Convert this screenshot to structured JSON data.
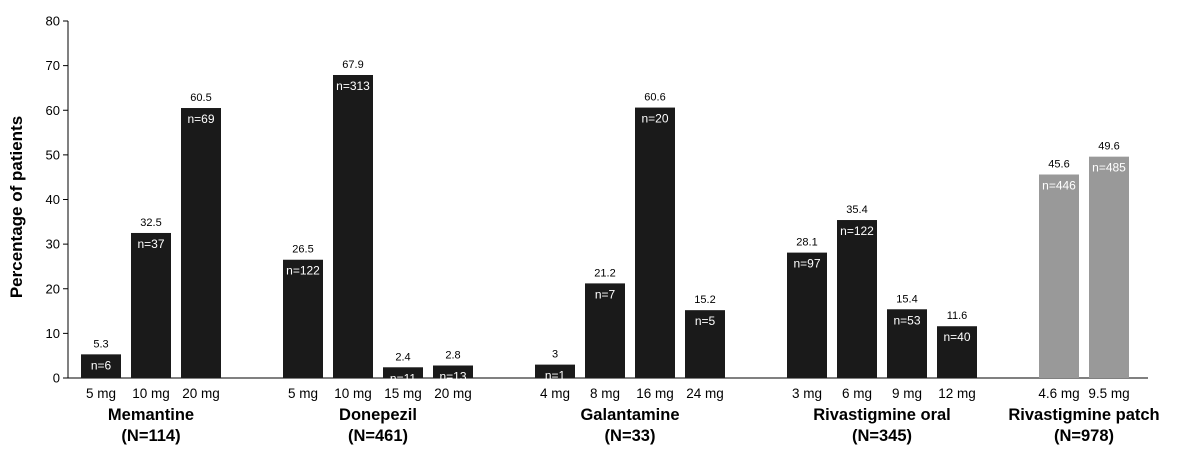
{
  "chart_data": {
    "type": "bar",
    "ylabel": "Percentage of patients",
    "ylim": [
      0,
      80
    ],
    "yticks": [
      "0",
      "10",
      "20",
      "30",
      "40",
      "50",
      "60",
      "70",
      "80"
    ],
    "grid": false,
    "colors": {
      "oral": "#1a1a1a",
      "patch": "#999999"
    },
    "groups": [
      {
        "name": "Memantine",
        "count": "(N=114)",
        "color": "oral",
        "bars": [
          {
            "dose": "5 mg",
            "value": 5.3,
            "label": "5.3",
            "n": "n=6"
          },
          {
            "dose": "10 mg",
            "value": 32.5,
            "label": "32.5",
            "n": "n=37"
          },
          {
            "dose": "20 mg",
            "value": 60.5,
            "label": "60.5",
            "n": "n=69"
          }
        ]
      },
      {
        "name": "Donepezil",
        "count": "(N=461)",
        "color": "oral",
        "bars": [
          {
            "dose": "5 mg",
            "value": 26.5,
            "label": "26.5",
            "n": "n=122"
          },
          {
            "dose": "10 mg",
            "value": 67.9,
            "label": "67.9",
            "n": "n=313"
          },
          {
            "dose": "15 mg",
            "value": 2.4,
            "label": "2.4",
            "n": "n=11"
          },
          {
            "dose": "20 mg",
            "value": 2.8,
            "label": "2.8",
            "n": "n=13"
          }
        ]
      },
      {
        "name": "Galantamine",
        "count": "(N=33)",
        "color": "oral",
        "bars": [
          {
            "dose": "4 mg",
            "value": 3,
            "label": "3",
            "n": "n=1"
          },
          {
            "dose": "8 mg",
            "value": 21.2,
            "label": "21.2",
            "n": "n=7"
          },
          {
            "dose": "16 mg",
            "value": 60.6,
            "label": "60.6",
            "n": "n=20"
          },
          {
            "dose": "24 mg",
            "value": 15.2,
            "label": "15.2",
            "n": "n=5"
          }
        ]
      },
      {
        "name": "Rivastigmine oral",
        "count": "(N=345)",
        "color": "oral",
        "bars": [
          {
            "dose": "3 mg",
            "value": 28.1,
            "label": "28.1",
            "n": "n=97"
          },
          {
            "dose": "6 mg",
            "value": 35.4,
            "label": "35.4",
            "n": "n=122"
          },
          {
            "dose": "9 mg",
            "value": 15.4,
            "label": "15.4",
            "n": "n=53"
          },
          {
            "dose": "12 mg",
            "value": 11.6,
            "label": "11.6",
            "n": "n=40"
          }
        ]
      },
      {
        "name": "Rivastigmine patch",
        "count": "(N=978)",
        "color": "patch",
        "bars": [
          {
            "dose": "4.6 mg",
            "value": 45.6,
            "label": "45.6",
            "n": "n=446"
          },
          {
            "dose": "9.5 mg",
            "value": 49.6,
            "label": "49.6",
            "n": "n=485"
          }
        ]
      }
    ]
  }
}
